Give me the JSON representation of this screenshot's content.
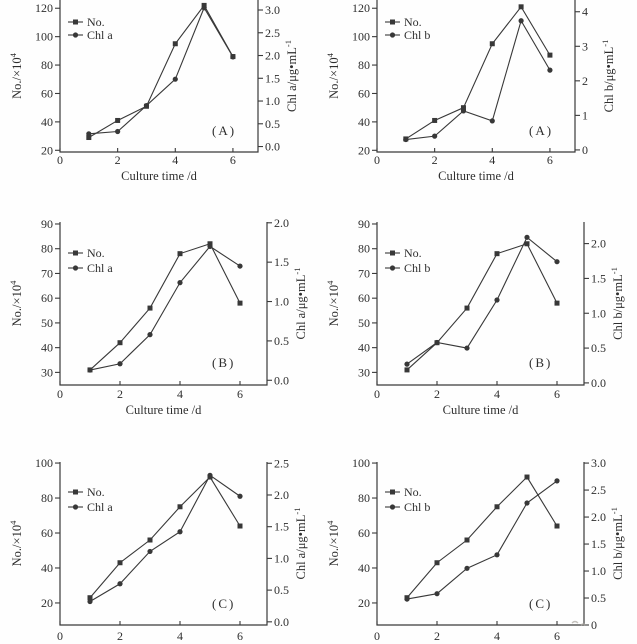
{
  "figure": {
    "description": "Six dual-axis line charts of cell number and chlorophyll content versus culture time",
    "colors": {
      "ink": "#2e2e2e",
      "axis": "#3a3a3a",
      "series": "#383838",
      "artifact": "#b0aca6"
    },
    "x_label": "Culture time /d"
  },
  "chart_data": [
    {
      "id": "panel-a-chl-a",
      "type": "line",
      "panel_label": "(A)",
      "xlabel": "Culture time /d",
      "xlabel_visible": true,
      "x": [
        1,
        2,
        3,
        4,
        5,
        6
      ],
      "x_axis": {
        "min": 0,
        "max": 6.87,
        "ticks": [
          0,
          2,
          4,
          6
        ],
        "tick_labels": [
          "0",
          "2",
          "4",
          "6"
        ]
      },
      "left_axis": {
        "title": "No./×10",
        "title_sup": "4",
        "min": 18.8,
        "max": 125.8,
        "ticks": [
          20,
          40,
          60,
          80,
          100,
          120
        ],
        "tick_labels": [
          "20",
          "40",
          "60",
          "80",
          "100",
          "120"
        ]
      },
      "right_axis": {
        "title": "Chl a/μg•mL",
        "title_sup": "-1",
        "min": -0.12,
        "max": 3.22,
        "ticks": [
          0,
          0.5,
          1,
          1.5,
          2,
          2.5,
          3
        ],
        "tick_labels": [
          "0.0",
          "0.5",
          "1.0",
          "1.5",
          "2.0",
          "2.5",
          "3.0"
        ]
      },
      "legend": {
        "position": "upper-left",
        "entries": [
          "No.",
          "Chl a"
        ]
      },
      "series": [
        {
          "name": "No.",
          "axis": "left",
          "marker": "square",
          "values": [
            29,
            41,
            51,
            95,
            122,
            86
          ]
        },
        {
          "name": "Chl a",
          "axis": "right",
          "marker": "circle",
          "values": [
            0.28,
            0.33,
            0.9,
            1.48,
            3.05,
            1.97
          ]
        }
      ]
    },
    {
      "id": "panel-a-chl-b",
      "type": "line",
      "panel_label": "(A)",
      "xlabel": "Culture time /d",
      "xlabel_visible": true,
      "x": [
        1,
        2,
        3,
        4,
        5,
        6
      ],
      "x_axis": {
        "min": 0,
        "max": 6.87,
        "ticks": [
          0,
          2,
          4,
          6
        ],
        "tick_labels": [
          "0",
          "2",
          "4",
          "6"
        ]
      },
      "left_axis": {
        "title": "No./×10",
        "title_sup": "4",
        "min": 18.8,
        "max": 125.8,
        "ticks": [
          20,
          40,
          60,
          80,
          100,
          120
        ],
        "tick_labels": [
          "20",
          "40",
          "60",
          "80",
          "100",
          "120"
        ]
      },
      "right_axis": {
        "title": "Chl b/μg•mL",
        "title_sup": "-1",
        "min": -0.06,
        "max": 4.34,
        "ticks": [
          0,
          1,
          2,
          3,
          4
        ],
        "tick_labels": [
          "0",
          "1",
          "2",
          "3",
          "4"
        ]
      },
      "legend": {
        "position": "upper-left",
        "entries": [
          "No.",
          "Chl b"
        ]
      },
      "series": [
        {
          "name": "No.",
          "axis": "left",
          "marker": "square",
          "values": [
            28,
            41,
            50,
            95,
            121,
            87
          ]
        },
        {
          "name": "Chl b",
          "axis": "right",
          "marker": "circle",
          "values": [
            0.3,
            0.4,
            1.13,
            0.84,
            3.74,
            2.31
          ]
        }
      ]
    },
    {
      "id": "panel-b-chl-a",
      "type": "line",
      "panel_label": "(B)",
      "xlabel": "Culture time /d",
      "xlabel_visible": true,
      "x": [
        1,
        2,
        3,
        4,
        5,
        6
      ],
      "x_axis": {
        "min": 0,
        "max": 6.9,
        "ticks": [
          0,
          2,
          4,
          6
        ],
        "tick_labels": [
          "0",
          "2",
          "4",
          "6"
        ]
      },
      "left_axis": {
        "title": "No./×10",
        "title_sup": "4",
        "min": 24.9,
        "max": 90.8,
        "ticks": [
          30,
          40,
          50,
          60,
          70,
          80,
          90
        ],
        "tick_labels": [
          "30",
          "40",
          "50",
          "60",
          "70",
          "80",
          "90"
        ]
      },
      "right_axis": {
        "title": "Chl a/μg•mL",
        "title_sup": "-1",
        "min": -0.06,
        "max": 2.01,
        "ticks": [
          0,
          0.5,
          1,
          1.5,
          2
        ],
        "tick_labels": [
          "0.0",
          "0.5",
          "1.0",
          "1.5",
          "2.0"
        ]
      },
      "legend": {
        "position": "upper-left",
        "entries": [
          "No.",
          "Chl a"
        ]
      },
      "series": [
        {
          "name": "No.",
          "axis": "left",
          "marker": "square",
          "values": [
            31,
            42,
            56,
            78,
            82,
            58
          ]
        },
        {
          "name": "Chl a",
          "axis": "right",
          "marker": "circle",
          "values": [
            0.13,
            0.21,
            0.58,
            1.24,
            1.7,
            1.45
          ]
        }
      ]
    },
    {
      "id": "panel-b-chl-b",
      "type": "line",
      "panel_label": "(B)",
      "xlabel": "Culture time /d",
      "xlabel_visible": true,
      "x": [
        1,
        2,
        3,
        4,
        5,
        6
      ],
      "x_axis": {
        "min": 0,
        "max": 6.9,
        "ticks": [
          0,
          2,
          4,
          6
        ],
        "tick_labels": [
          "0",
          "2",
          "4",
          "6"
        ]
      },
      "left_axis": {
        "title": "No./×10",
        "title_sup": "4",
        "min": 24.9,
        "max": 90.8,
        "ticks": [
          30,
          40,
          50,
          60,
          70,
          80,
          90
        ],
        "tick_labels": [
          "30",
          "40",
          "50",
          "60",
          "70",
          "80",
          "90"
        ]
      },
      "right_axis": {
        "title": "Chl b/μg•mL",
        "title_sup": "-1",
        "min": -0.03,
        "max": 2.31,
        "ticks": [
          0,
          0.5,
          1,
          1.5,
          2
        ],
        "tick_labels": [
          "0.0",
          "0.5",
          "1.0",
          "1.5",
          "2.0"
        ]
      },
      "legend": {
        "position": "upper-left",
        "entries": [
          "No.",
          "Chl b"
        ]
      },
      "series": [
        {
          "name": "No.",
          "axis": "left",
          "marker": "square",
          "values": [
            31,
            42,
            56,
            78,
            82,
            58
          ]
        },
        {
          "name": "Chl b",
          "axis": "right",
          "marker": "circle",
          "values": [
            0.27,
            0.58,
            0.5,
            1.19,
            2.09,
            1.74
          ]
        }
      ]
    },
    {
      "id": "panel-c-chl-a",
      "type": "line",
      "panel_label": "(C)",
      "xlabel": "Culture time /d",
      "xlabel_visible": false,
      "x": [
        1,
        2,
        3,
        4,
        5,
        6
      ],
      "x_axis": {
        "min": 0,
        "max": 6.9,
        "ticks": [
          0,
          2,
          4,
          6
        ],
        "tick_labels": [
          "0",
          "2",
          "4",
          "6"
        ]
      },
      "left_axis": {
        "title": "No./×10",
        "title_sup": "4",
        "min": 7.4,
        "max": 100.6,
        "ticks": [
          20,
          40,
          60,
          80,
          100
        ],
        "tick_labels": [
          "20",
          "40",
          "60",
          "80",
          "100"
        ]
      },
      "right_axis": {
        "title": "Chl a/μg•mL",
        "title_sup": "-1",
        "min": -0.05,
        "max": 2.52,
        "ticks": [
          0,
          0.5,
          1,
          1.5,
          2,
          2.5
        ],
        "tick_labels": [
          "0.0",
          "0.5",
          "1.0",
          "1.5",
          "2.0",
          "2.5"
        ]
      },
      "legend": {
        "position": "upper-left",
        "entries": [
          "No.",
          "Chl a"
        ]
      },
      "series": [
        {
          "name": "No.",
          "axis": "left",
          "marker": "square",
          "values": [
            23,
            43,
            56,
            75,
            92,
            64
          ]
        },
        {
          "name": "Chl a",
          "axis": "right",
          "marker": "circle",
          "values": [
            0.32,
            0.6,
            1.11,
            1.42,
            2.31,
            1.98
          ]
        }
      ]
    },
    {
      "id": "panel-c-chl-b",
      "type": "line",
      "panel_label": "(C)",
      "xlabel": "Culture time /d",
      "xlabel_visible": false,
      "x": [
        1,
        2,
        3,
        4,
        5,
        6
      ],
      "x_axis": {
        "min": 0,
        "max": 6.9,
        "ticks": [
          0,
          2,
          4,
          6
        ],
        "tick_labels": [
          "0",
          "2",
          "4",
          "6"
        ]
      },
      "left_axis": {
        "title": "No./×10",
        "title_sup": "4",
        "min": 7.4,
        "max": 100.6,
        "ticks": [
          20,
          40,
          60,
          80,
          100
        ],
        "tick_labels": [
          "20",
          "40",
          "60",
          "80",
          "100"
        ]
      },
      "right_axis": {
        "title": "Chl b/μg•mL",
        "title_sup": "-1",
        "min": 0,
        "max": 3.02,
        "ticks": [
          0,
          0.5,
          1,
          1.5,
          2,
          2.5,
          3
        ],
        "tick_labels": [
          "0",
          "0.5",
          "1.0",
          "1.5",
          "2.0",
          "2.5",
          "3.0"
        ]
      },
      "legend": {
        "position": "upper-left",
        "entries": [
          "No.",
          "Chl b"
        ]
      },
      "series": [
        {
          "name": "No.",
          "axis": "left",
          "marker": "square",
          "values": [
            23,
            43,
            56,
            75,
            92,
            64
          ]
        },
        {
          "name": "Chl b",
          "axis": "right",
          "marker": "circle",
          "values": [
            0.48,
            0.58,
            1.05,
            1.3,
            2.26,
            2.67
          ]
        }
      ]
    }
  ]
}
